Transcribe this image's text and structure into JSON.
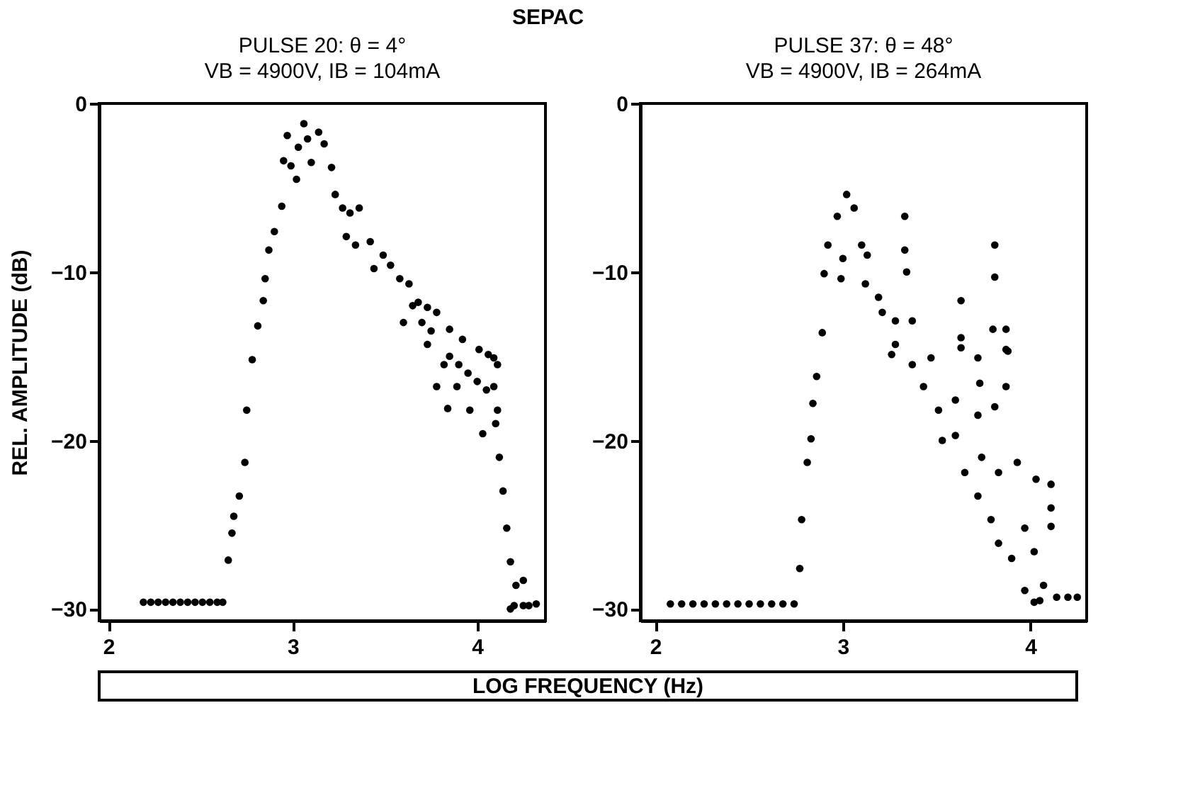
{
  "chart_data": [
    {
      "type": "scatter",
      "title": "PULSE 20: θ = 4°",
      "subtitle": "VB = 4900V, IB = 104mA",
      "annotations": [
        "SEPAC"
      ],
      "xlabel": "LOG FREQUENCY (Hz)",
      "ylabel": "REL. AMPLITUDE (dB)",
      "xlim": [
        1.95,
        4.37
      ],
      "xticks": [
        2,
        3,
        4
      ],
      "ylim": [
        -30.7,
        0
      ],
      "yticks": [
        -30,
        -20,
        -10,
        0
      ],
      "grid": false,
      "marker": "circle",
      "x": [
        2.19,
        2.23,
        2.27,
        2.31,
        2.35,
        2.39,
        2.43,
        2.47,
        2.51,
        2.55,
        2.59,
        2.62,
        2.65,
        2.67,
        2.68,
        2.71,
        2.74,
        2.75,
        2.78,
        2.81,
        2.84,
        2.85,
        2.87,
        2.9,
        2.94,
        2.95,
        2.97,
        2.99,
        3.02,
        3.03,
        3.06,
        3.08,
        3.1,
        3.14,
        3.17,
        3.21,
        3.23,
        3.27,
        3.31,
        3.36,
        3.29,
        3.34,
        3.42,
        3.44,
        3.49,
        3.53,
        3.58,
        3.63,
        3.68,
        3.73,
        3.78,
        3.85,
        3.92,
        4.01,
        4.09,
        3.6,
        3.73,
        3.82,
        3.89,
        3.78,
        3.84,
        3.96,
        4.03,
        4.11,
        4.12,
        4.16,
        4.18,
        4.21,
        4.25,
        4.18,
        4.25,
        4.32,
        4.06,
        4.09,
        4.11,
        3.7,
        3.85,
        3.95,
        4.05,
        4.1,
        3.65,
        3.75,
        3.9,
        4.0,
        4.14,
        4.2,
        4.28
      ],
      "series": [
        {
          "color": "#000000",
          "values": [
            -29.6,
            -29.6,
            -29.6,
            -29.6,
            -29.6,
            -29.6,
            -29.6,
            -29.6,
            -29.6,
            -29.6,
            -29.6,
            -29.6,
            -27.1,
            -25.5,
            -24.5,
            -23.3,
            -21.3,
            -18.2,
            -15.2,
            -13.2,
            -11.7,
            -10.4,
            -8.7,
            -7.6,
            -6.1,
            -3.4,
            -1.9,
            -3.7,
            -4.5,
            -2.6,
            -1.2,
            -2.1,
            -3.5,
            -1.7,
            -2.4,
            -3.8,
            -5.4,
            -6.2,
            -6.5,
            -6.2,
            -7.9,
            -8.4,
            -8.2,
            -9.8,
            -9.0,
            -9.6,
            -10.4,
            -10.7,
            -11.8,
            -12.1,
            -12.4,
            -13.4,
            -14.0,
            -14.6,
            -15.1,
            -13.0,
            -14.3,
            -15.5,
            -16.8,
            -16.8,
            -18.1,
            -18.2,
            -19.6,
            -18.2,
            -21.0,
            -25.2,
            -27.2,
            -28.6,
            -28.3,
            -30.0,
            -29.8,
            -29.7,
            -14.9,
            -16.8,
            -15.5,
            -13.0,
            -15.0,
            -16.0,
            -17.0,
            -19.0,
            -12.0,
            -13.5,
            -15.5,
            -16.5,
            -23.0,
            -29.8,
            -29.8
          ]
        }
      ]
    },
    {
      "type": "scatter",
      "title": "PULSE 37: θ = 48°",
      "subtitle": "VB = 4900V, IB = 264mA",
      "xlim": [
        1.92,
        4.3
      ],
      "xticks": [
        2,
        3,
        4
      ],
      "ylim": [
        -30.7,
        0
      ],
      "yticks": [
        -30,
        -20,
        -10,
        0
      ],
      "grid": false,
      "marker": "circle",
      "x": [
        2.08,
        2.14,
        2.2,
        2.26,
        2.32,
        2.38,
        2.44,
        2.5,
        2.56,
        2.62,
        2.68,
        2.74,
        2.77,
        2.78,
        2.81,
        2.83,
        2.84,
        2.86,
        2.89,
        2.9,
        2.92,
        2.97,
        3.02,
        3.06,
        2.99,
        3.0,
        3.1,
        3.13,
        3.12,
        3.19,
        3.21,
        3.28,
        3.33,
        3.33,
        3.34,
        3.37,
        3.28,
        3.47,
        3.63,
        3.63,
        3.81,
        3.81,
        3.8,
        3.87,
        3.88,
        3.72,
        3.26,
        3.37,
        3.43,
        3.51,
        3.53,
        3.6,
        3.65,
        3.74,
        3.83,
        3.93,
        3.83,
        3.97,
        4.02,
        3.97,
        4.07,
        4.02,
        4.14,
        4.25,
        3.72,
        3.6,
        3.79,
        3.72,
        4.03,
        4.11,
        4.11,
        4.11,
        3.73,
        3.81,
        3.87,
        3.87,
        3.63,
        3.9,
        4.05,
        4.2
      ],
      "series": [
        {
          "color": "#000000",
          "values": [
            -29.7,
            -29.7,
            -29.7,
            -29.7,
            -29.7,
            -29.7,
            -29.7,
            -29.7,
            -29.7,
            -29.7,
            -29.7,
            -29.7,
            -27.6,
            -24.7,
            -21.3,
            -19.9,
            -17.8,
            -16.2,
            -13.6,
            -10.1,
            -8.4,
            -6.7,
            -5.4,
            -6.2,
            -10.4,
            -9.2,
            -8.4,
            -9.0,
            -10.7,
            -11.5,
            -12.4,
            -12.9,
            -6.7,
            -8.7,
            -10.0,
            -12.9,
            -14.3,
            -15.1,
            -11.7,
            -13.9,
            -8.4,
            -10.3,
            -13.4,
            -13.4,
            -14.7,
            -15.1,
            -14.9,
            -15.5,
            -16.8,
            -18.2,
            -20.0,
            -19.7,
            -21.9,
            -21.0,
            -21.9,
            -21.3,
            -26.1,
            -25.2,
            -26.6,
            -28.9,
            -28.6,
            -29.6,
            -29.3,
            -29.3,
            -18.5,
            -17.6,
            -24.7,
            -23.3,
            -22.3,
            -22.6,
            -24.0,
            -25.1,
            -16.6,
            -18.0,
            -16.8,
            -14.6,
            -14.5,
            -27.0,
            -29.5,
            -29.3
          ]
        }
      ]
    }
  ]
}
